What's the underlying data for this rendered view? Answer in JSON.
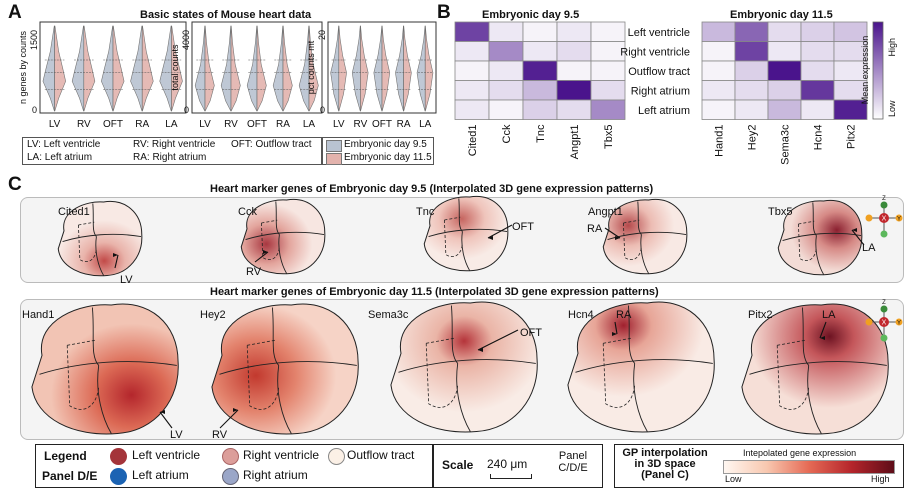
{
  "panels": {
    "A": "A",
    "B": "B",
    "C": "C"
  },
  "panelA": {
    "title": "Basic states of Mouse heart data",
    "plots": [
      {
        "ylabel": "n genes by counts",
        "ticks": [
          "1500",
          "0"
        ]
      },
      {
        "ylabel": "total counts",
        "ticks": [
          "4000",
          "0"
        ]
      },
      {
        "ylabel": "pct counts mt",
        "ticks": [
          "20",
          "0"
        ]
      }
    ],
    "categories": [
      "LV",
      "RV",
      "OFT",
      "RA",
      "LA"
    ],
    "abbrev": {
      "lv": "LV: Left ventricle",
      "rv": "RV: Right ventricle",
      "oft": "OFT: Outflow tract",
      "la": "LA: Left atrium",
      "ra": "RA: Right atrium"
    },
    "legend": [
      {
        "label": "Embryonic day 9.5",
        "color": "#b9c3d1"
      },
      {
        "label": "Embryonic day 11.5",
        "color": "#e3b3ad"
      }
    ]
  },
  "chart_data": [
    {
      "type": "heatmap",
      "title": "Embryonic day 9.5",
      "rows": [
        "Left ventricle",
        "Right ventricle",
        "Outflow tract",
        "Right atrium",
        "Left atrium"
      ],
      "columns": [
        "Cited1",
        "Cck",
        "Tnc",
        "Angpt1",
        "Tbx5"
      ],
      "values": [
        [
          0.8,
          0.1,
          0.05,
          0.1,
          0.05
        ],
        [
          0.1,
          0.5,
          0.1,
          0.15,
          0.05
        ],
        [
          0.05,
          0.1,
          0.95,
          0.05,
          0.05
        ],
        [
          0.1,
          0.15,
          0.3,
          1.0,
          0.15
        ],
        [
          0.1,
          0.05,
          0.2,
          0.15,
          0.5
        ]
      ]
    },
    {
      "type": "heatmap",
      "title": "Embryonic day 11.5",
      "rows": [
        "Left ventricle",
        "Right ventricle",
        "Outflow tract",
        "Right atrium",
        "Left atrium"
      ],
      "columns": [
        "Hand1",
        "Hey2",
        "Sema3c",
        "Hcn4",
        "Pitx2"
      ],
      "values": [
        [
          0.3,
          0.65,
          0.15,
          0.2,
          0.25
        ],
        [
          0.05,
          0.8,
          0.1,
          0.15,
          0.15
        ],
        [
          0.05,
          0.2,
          1.0,
          0.15,
          0.1
        ],
        [
          0.1,
          0.15,
          0.2,
          0.85,
          0.15
        ],
        [
          0.05,
          0.1,
          0.3,
          0.1,
          0.95
        ]
      ],
      "colorbar": {
        "label": "Mean expression",
        "high": "High",
        "low": "Low"
      }
    }
  ],
  "panelC": {
    "row1_title": "Heart marker genes of Embryonic day 9.5 (Interpolated 3D gene expression patterns)",
    "row2_title": "Heart marker genes of Embryonic day 11.5 (Interpolated 3D gene expression patterns)",
    "row1": [
      {
        "gene": "Cited1",
        "region": "LV"
      },
      {
        "gene": "Cck",
        "region": "RV"
      },
      {
        "gene": "Tnc",
        "region": "OFT"
      },
      {
        "gene": "Angpt1",
        "region": "RA"
      },
      {
        "gene": "Tbx5",
        "region": "LA"
      }
    ],
    "row2": [
      {
        "gene": "Hand1",
        "region": "LV"
      },
      {
        "gene": "Hey2",
        "region": "RV"
      },
      {
        "gene": "Sema3c",
        "region": "OFT"
      },
      {
        "gene": "Hcn4",
        "region": "RA"
      },
      {
        "gene": "Pitx2",
        "region": "LA"
      }
    ],
    "axes": {
      "z": "Z",
      "x": "X",
      "y": "Y"
    }
  },
  "bottom_legend": {
    "legend_word": "Legend",
    "panel_word": "Panel D/E",
    "items": [
      {
        "label": "Left ventricle",
        "color": "#a4343a"
      },
      {
        "label": "Right ventricle",
        "color": "#dc9e9a"
      },
      {
        "label": "Outflow tract",
        "color": "#fbf0e6"
      },
      {
        "label": "Left atrium",
        "color": "#1b63b3"
      },
      {
        "label": "Right atrium",
        "color": "#9aa6c8"
      }
    ],
    "scale_word": "Scale",
    "scale_value": "240 μm",
    "scale_panel": "Panel C/D/E",
    "gp_title": "GP interpolation in 3D space (Panel C)",
    "gp_bar_label": "Intepolated gene expression",
    "gp_low": "Low",
    "gp_high": "High"
  }
}
